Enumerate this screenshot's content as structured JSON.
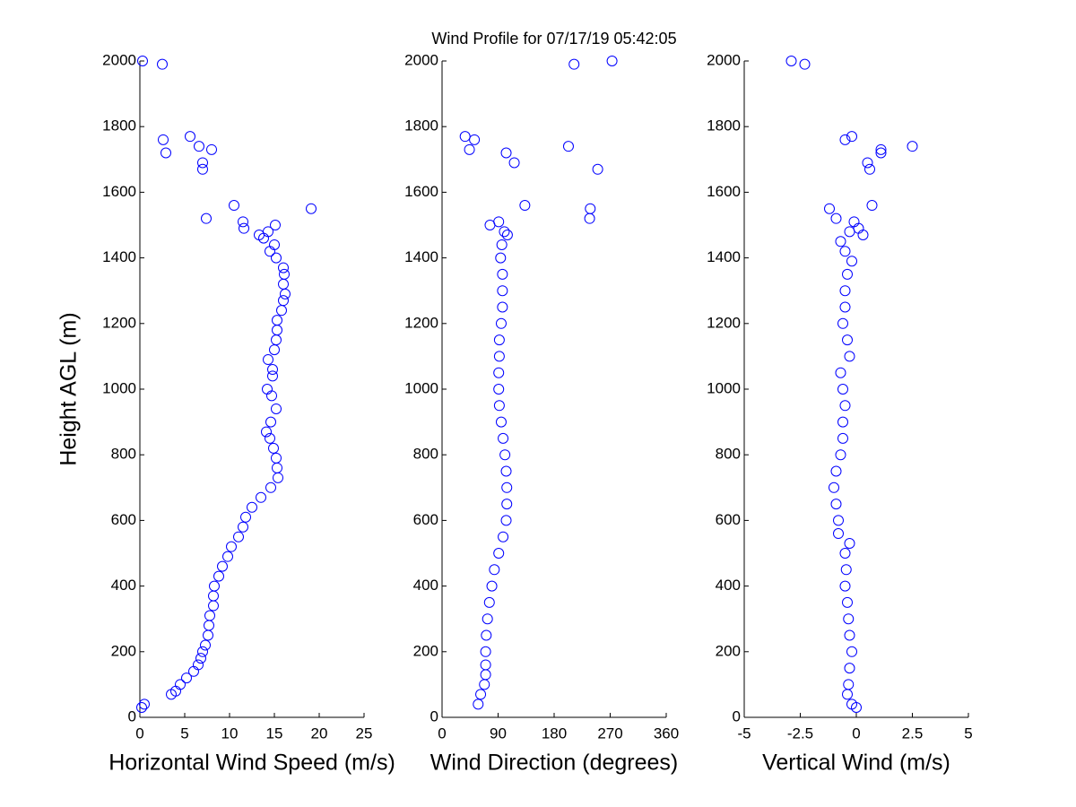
{
  "title": "Wind Profile for  07/17/19 05:42:05",
  "chart_data": [
    {
      "type": "scatter",
      "x_label": "Horizontal Wind Speed (m/s)",
      "y_label": "Height AGL (m)",
      "color": "#0000ff",
      "xlim": [
        0,
        25
      ],
      "xticks": [
        0,
        5,
        10,
        15,
        20,
        25
      ],
      "ylim": [
        0,
        2000
      ],
      "yticks": [
        0,
        200,
        400,
        600,
        800,
        1000,
        1200,
        1400,
        1600,
        1800,
        2000
      ],
      "x": [
        0.2,
        0.5,
        3.5,
        4,
        4.5,
        5.2,
        6,
        6.5,
        6.8,
        7,
        7.3,
        7.6,
        7.7,
        7.8,
        8.2,
        8.2,
        8.3,
        8.8,
        9.2,
        9.8,
        10.2,
        11,
        11.5,
        11.8,
        12.5,
        13.5,
        14.6,
        15.4,
        15.3,
        15.2,
        14.9,
        14.5,
        14.1,
        14.6,
        15.2,
        14.7,
        14.2,
        14.8,
        14.8,
        14.3,
        15.0,
        15.2,
        15.3,
        15.3,
        15.8,
        16.0,
        16.2,
        16.0,
        16.1,
        16.0,
        15.2,
        14.5,
        15.0,
        13.8,
        13.3,
        14.3,
        11.6,
        15.1,
        11.5,
        7.4,
        19.1,
        10.5,
        7.0,
        7.0,
        2.9,
        8.0,
        6.6,
        2.6,
        5.6,
        2.5,
        0.3
      ],
      "y": [
        30,
        40,
        70,
        80,
        100,
        120,
        140,
        160,
        180,
        200,
        220,
        250,
        280,
        310,
        340,
        370,
        400,
        430,
        460,
        490,
        520,
        550,
        580,
        610,
        640,
        670,
        700,
        730,
        760,
        790,
        820,
        850,
        870,
        900,
        940,
        980,
        1000,
        1040,
        1060,
        1090,
        1120,
        1150,
        1180,
        1210,
        1240,
        1270,
        1290,
        1320,
        1350,
        1370,
        1400,
        1420,
        1440,
        1460,
        1470,
        1480,
        1490,
        1500,
        1510,
        1520,
        1550,
        1560,
        1670,
        1690,
        1720,
        1730,
        1740,
        1760,
        1770,
        1990,
        2000
      ]
    },
    {
      "type": "scatter",
      "x_label": "Wind Direction (degrees)",
      "color": "#0000ff",
      "xlim": [
        0,
        360
      ],
      "xticks": [
        0,
        90,
        180,
        270,
        360
      ],
      "ylim": [
        0,
        2000
      ],
      "yticks": [
        0,
        200,
        400,
        600,
        800,
        1000,
        1200,
        1400,
        1600,
        1800,
        2000
      ],
      "x": [
        58,
        62,
        68,
        70,
        70,
        70,
        71,
        73,
        76,
        80,
        84,
        91,
        98,
        103,
        104,
        104,
        103,
        101,
        98,
        95,
        92,
        91,
        91,
        92,
        92,
        95,
        97,
        97,
        97,
        94,
        96,
        105,
        100,
        77,
        91,
        237,
        238,
        133,
        250,
        116,
        103,
        44,
        203,
        52,
        37,
        212,
        273
      ],
      "y": [
        40,
        70,
        100,
        130,
        160,
        200,
        250,
        300,
        350,
        400,
        450,
        500,
        550,
        600,
        650,
        700,
        750,
        800,
        850,
        900,
        950,
        1000,
        1050,
        1100,
        1150,
        1200,
        1250,
        1300,
        1350,
        1400,
        1440,
        1470,
        1480,
        1500,
        1510,
        1520,
        1550,
        1560,
        1670,
        1690,
        1720,
        1730,
        1740,
        1760,
        1770,
        1990,
        2000
      ]
    },
    {
      "type": "scatter",
      "x_label": "Vertical Wind (m/s)",
      "color": "#0000ff",
      "xlim": [
        -5,
        5
      ],
      "xticks": [
        -5,
        -2.5,
        0,
        2.5,
        5
      ],
      "ylim": [
        0,
        2000
      ],
      "yticks": [
        0,
        200,
        400,
        600,
        800,
        1000,
        1200,
        1400,
        1600,
        1800,
        2000
      ],
      "x": [
        0.0,
        -0.2,
        -0.4,
        -0.35,
        -0.3,
        -0.2,
        -0.3,
        -0.35,
        -0.4,
        -0.5,
        -0.45,
        -0.5,
        -0.3,
        -0.8,
        -0.8,
        -0.9,
        -1.0,
        -0.9,
        -0.7,
        -0.6,
        -0.6,
        -0.5,
        -0.6,
        -0.7,
        -0.3,
        -0.4,
        -0.6,
        -0.5,
        -0.5,
        -0.4,
        -0.2,
        -0.5,
        -0.7,
        0.3,
        -0.3,
        0.1,
        -0.1,
        -0.9,
        -1.2,
        0.7,
        0.6,
        0.5,
        1.1,
        1.1,
        2.5,
        -0.5,
        -0.2,
        -2.3,
        -2.9
      ],
      "y": [
        30,
        40,
        70,
        100,
        150,
        200,
        250,
        300,
        350,
        400,
        450,
        500,
        530,
        560,
        600,
        650,
        700,
        750,
        800,
        850,
        900,
        950,
        1000,
        1050,
        1100,
        1150,
        1200,
        1250,
        1300,
        1350,
        1390,
        1420,
        1450,
        1470,
        1480,
        1490,
        1510,
        1520,
        1550,
        1560,
        1670,
        1690,
        1720,
        1730,
        1740,
        1760,
        1770,
        1990,
        2000
      ]
    }
  ]
}
